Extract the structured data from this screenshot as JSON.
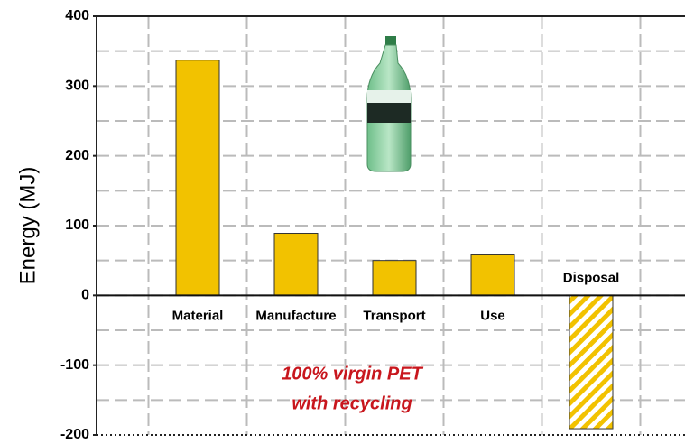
{
  "chart_data": {
    "type": "bar",
    "y_label": "Energy (MJ)",
    "categories": [
      "Material",
      "Manufacture",
      "Transport",
      "Use",
      "Disposal"
    ],
    "values": [
      337,
      89,
      50,
      58,
      -191
    ],
    "hatched": [
      false,
      false,
      false,
      false,
      true
    ],
    "color": "#f2c200",
    "ylim": [
      -200,
      400
    ],
    "yticks": [
      -200,
      -100,
      0,
      100,
      200,
      300,
      400
    ],
    "grid": true,
    "annotation": [
      "100% virgin PET",
      "with recycling"
    ],
    "annotation_color": "#c8161d"
  }
}
